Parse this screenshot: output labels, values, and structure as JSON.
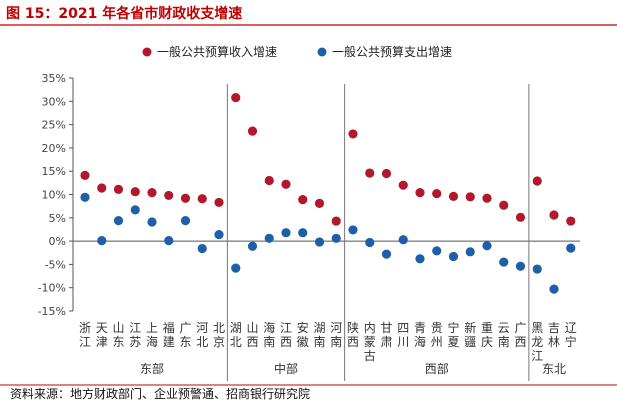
{
  "chart_data": {
    "type": "scatter",
    "title": "图 15：2021 年各省市财政收支增速",
    "source": "资料来源：地方财政部门、企业预警通、招商银行研究院",
    "ylim": [
      -15,
      35
    ],
    "yticks": [
      "35%",
      "30%",
      "25%",
      "20%",
      "15%",
      "10%",
      "5%",
      "0%",
      "-5%",
      "-10%",
      "-15%"
    ],
    "ytick_values": [
      35,
      30,
      25,
      20,
      15,
      10,
      5,
      0,
      -5,
      -10,
      -15
    ],
    "categories": [
      "浙江",
      "天津",
      "山东",
      "江苏",
      "上海",
      "福建",
      "广东",
      "河北",
      "北京",
      "湖北",
      "山西",
      "海南",
      "江西",
      "安徽",
      "湖南",
      "河南",
      "陕西",
      "内蒙古",
      "甘肃",
      "四川",
      "青海",
      "贵州",
      "宁夏",
      "新疆",
      "重庆",
      "云南",
      "广西",
      "黑龙江",
      "吉林",
      "辽宁"
    ],
    "series": [
      {
        "name": "一般公共预算收入增速",
        "color": "#b2182b",
        "values": [
          14.1,
          11.4,
          11.1,
          10.6,
          10.4,
          9.8,
          9.2,
          9.1,
          8.3,
          30.8,
          23.6,
          13.0,
          12.2,
          8.9,
          8.1,
          4.3,
          23.0,
          14.6,
          14.5,
          12.0,
          10.4,
          10.2,
          9.6,
          9.5,
          9.2,
          7.7,
          5.1,
          12.9,
          5.6,
          4.3
        ]
      },
      {
        "name": "一般公共预算支出增速",
        "color": "#1f5fa8",
        "values": [
          9.4,
          0.1,
          4.4,
          6.7,
          4.1,
          0.1,
          4.4,
          -1.6,
          1.4,
          -5.8,
          -1.1,
          0.6,
          1.8,
          1.8,
          -0.2,
          0.6,
          2.4,
          -0.3,
          -2.8,
          0.3,
          -3.8,
          -2.1,
          -3.3,
          -2.3,
          -1.0,
          -4.5,
          -5.4,
          -6.0,
          -10.3,
          -1.5
        ]
      }
    ],
    "regions": [
      {
        "name": "东部",
        "start": 0,
        "end": 8
      },
      {
        "name": "中部",
        "start": 9,
        "end": 15
      },
      {
        "name": "西部",
        "start": 16,
        "end": 26
      },
      {
        "name": "东北",
        "start": 27,
        "end": 29
      }
    ]
  },
  "colors": {
    "title": "#c00000",
    "income": "#b2182b",
    "expense": "#1f5fa8"
  }
}
